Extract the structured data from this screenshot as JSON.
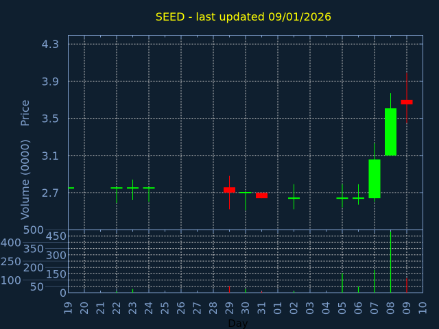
{
  "chart_data": {
    "type": "candlestick",
    "title": "SEED - last updated 09/01/2026",
    "xlabel": "Day",
    "price_panel": {
      "ylabel": "Price",
      "ylim": [
        2.5,
        4.4
      ],
      "yticks": [
        2.7,
        3.1,
        3.5,
        3.9,
        4.3
      ],
      "grid": true
    },
    "volume_panel": {
      "ylabel": "Volume (0000)",
      "ylim": [
        0,
        500
      ],
      "yticks": [
        0,
        50,
        100,
        150,
        200,
        250,
        300,
        350,
        400,
        450,
        500
      ],
      "grid": true
    },
    "x_ticks": [
      "19",
      "20",
      "21",
      "22",
      "23",
      "24",
      "25",
      "26",
      "27",
      "28",
      "29",
      "30",
      "31",
      "01",
      "02",
      "03",
      "04",
      "05",
      "06",
      "07",
      "08",
      "09",
      "10"
    ],
    "candles": [
      {
        "day": "19",
        "open": 2.75,
        "high": 2.75,
        "low": 2.75,
        "close": 2.75,
        "volume": 0
      },
      {
        "day": "22",
        "open": 2.75,
        "high": 2.75,
        "low": 2.59,
        "close": 2.75,
        "volume": 10
      },
      {
        "day": "23",
        "open": 2.75,
        "high": 2.84,
        "low": 2.62,
        "close": 2.75,
        "volume": 29
      },
      {
        "day": "24",
        "open": 2.75,
        "high": 2.75,
        "low": 2.6,
        "close": 2.75,
        "volume": 0
      },
      {
        "day": "29",
        "open": 2.75,
        "high": 2.88,
        "low": 2.52,
        "close": 2.7,
        "volume": 52
      },
      {
        "day": "30",
        "open": 2.7,
        "high": 2.7,
        "low": 2.51,
        "close": 2.7,
        "volume": 29
      },
      {
        "day": "31",
        "open": 2.69,
        "high": 2.69,
        "low": 2.64,
        "close": 2.64,
        "volume": 9
      },
      {
        "day": "02",
        "open": 2.64,
        "high": 2.79,
        "low": 2.52,
        "close": 2.64,
        "volume": 11
      },
      {
        "day": "05",
        "open": 2.64,
        "high": 2.79,
        "low": 2.54,
        "close": 2.64,
        "volume": 155
      },
      {
        "day": "06",
        "open": 2.64,
        "high": 2.79,
        "low": 2.57,
        "close": 2.64,
        "volume": 49
      },
      {
        "day": "07",
        "open": 2.64,
        "high": 3.23,
        "low": 2.6,
        "close": 3.05,
        "volume": 180
      },
      {
        "day": "08",
        "open": 3.1,
        "high": 3.77,
        "low": 3.1,
        "close": 3.6,
        "volume": 484
      },
      {
        "day": "09",
        "open": 3.69,
        "high": 3.99,
        "low": 3.45,
        "close": 3.65,
        "volume": 114
      }
    ],
    "colors": {
      "up": "#00ff00",
      "down": "#ff0000",
      "title": "#ffff00",
      "axis": "#7f9fcc",
      "background": "#0f1f2f",
      "grid": "#c8c8c8"
    }
  }
}
